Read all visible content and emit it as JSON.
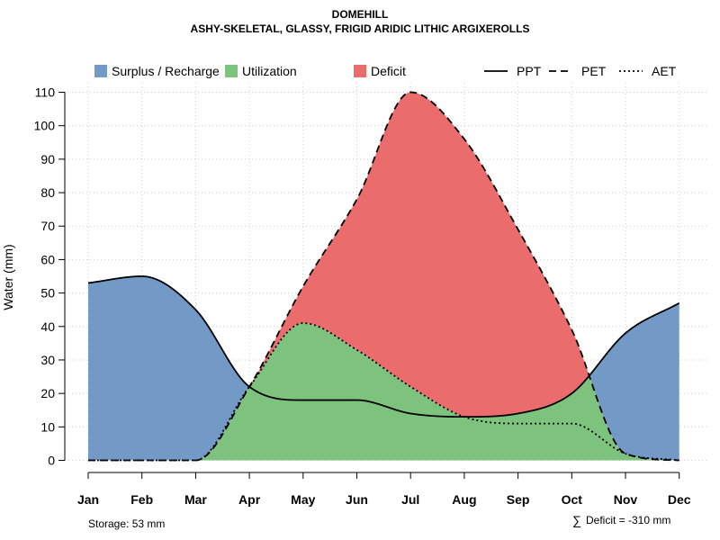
{
  "chart_data": {
    "type": "area",
    "title": "DOMEHILL",
    "subtitle": "ASHY-SKELETAL, GLASSY, FRIGID ARIDIC LITHIC ARGIXEROLLS",
    "xlabel": "",
    "ylabel": "Water (mm)",
    "ylim": [
      0,
      110
    ],
    "yticks": [
      0,
      10,
      20,
      30,
      40,
      50,
      60,
      70,
      80,
      90,
      100,
      110
    ],
    "grid": true,
    "legend_position": "top",
    "categories": [
      "Jan",
      "Feb",
      "Mar",
      "Apr",
      "May",
      "Jun",
      "Jul",
      "Aug",
      "Sep",
      "Oct",
      "Nov",
      "Dec"
    ],
    "series": [
      {
        "name": "PPT",
        "style": "solid",
        "values": [
          53,
          55,
          45,
          22,
          18,
          18,
          14,
          13,
          14,
          20,
          38,
          47
        ]
      },
      {
        "name": "PET",
        "style": "dashed",
        "values": [
          0,
          0,
          0,
          22,
          52,
          78,
          110,
          96,
          69,
          39,
          2,
          0
        ]
      },
      {
        "name": "AET",
        "style": "dotted",
        "values": [
          0,
          0,
          0,
          22,
          41,
          33,
          22,
          13,
          11,
          11,
          2,
          0
        ]
      }
    ],
    "legend": [
      {
        "label": "Surplus / Recharge",
        "kind": "fill",
        "color": "#7399c6"
      },
      {
        "label": "Utilization",
        "kind": "fill",
        "color": "#7dc27d"
      },
      {
        "label": "Deficit",
        "kind": "fill",
        "color": "#ea6c6c"
      },
      {
        "label": "PPT",
        "kind": "line",
        "style": "solid"
      },
      {
        "label": "PET",
        "kind": "line",
        "style": "dashed"
      },
      {
        "label": "AET",
        "kind": "line",
        "style": "dotted"
      }
    ],
    "annotations": {
      "storage": "Storage: 53 mm",
      "deficit_symbol": "∑",
      "deficit": "Deficit = -310 mm"
    }
  }
}
